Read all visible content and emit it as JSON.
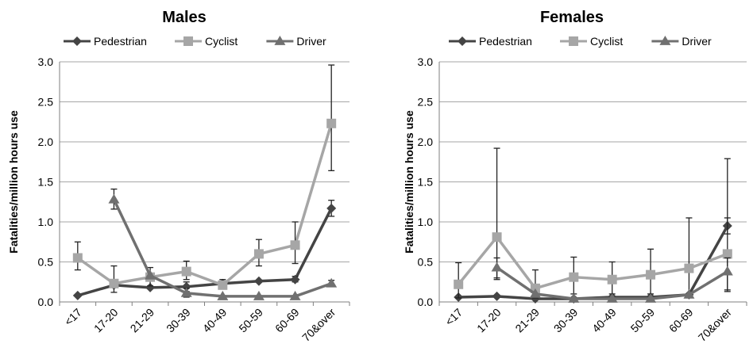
{
  "colors": {
    "Pedestrian": "#444444",
    "Cyclist": "#a6a6a6",
    "Driver": "#707070",
    "grid": "#a6a6a6",
    "axis": "#7f7f7f"
  },
  "markers": {
    "Pedestrian": "diamond",
    "Cyclist": "square",
    "Driver": "triangle"
  },
  "chart_data": [
    {
      "type": "line",
      "title": "Males",
      "ylabel": "Fatalities/million hours use",
      "xlabel": "",
      "categories": [
        "<17",
        "17-20",
        "21-29",
        "30-39",
        "40-49",
        "50-59",
        "60-69",
        "70&over"
      ],
      "ylim": [
        0,
        3.0
      ],
      "yticks": [
        "0.0",
        "0.5",
        "1.0",
        "1.5",
        "2.0",
        "2.5",
        "3.0"
      ],
      "grid": true,
      "legend": "top",
      "series": [
        {
          "name": "Pedestrian",
          "values": [
            0.08,
            0.21,
            0.18,
            0.19,
            0.23,
            0.26,
            0.28,
            1.17
          ],
          "err_low": [
            null,
            null,
            null,
            0.13,
            null,
            null,
            0.25,
            1.07
          ],
          "err_high": [
            null,
            null,
            null,
            0.25,
            null,
            null,
            0.32,
            1.27
          ]
        },
        {
          "name": "Cyclist",
          "values": [
            0.55,
            0.23,
            0.31,
            0.38,
            0.21,
            0.6,
            0.71,
            2.23
          ],
          "err_low": [
            0.4,
            0.12,
            0.2,
            0.28,
            0.17,
            0.45,
            0.48,
            1.64
          ],
          "err_high": [
            0.75,
            0.45,
            0.43,
            0.51,
            0.28,
            0.78,
            1.0,
            2.96
          ]
        },
        {
          "name": "Driver",
          "values": [
            null,
            1.28,
            0.33,
            0.11,
            0.07,
            0.07,
            0.07,
            0.23
          ],
          "err_low": [
            null,
            1.16,
            null,
            0.06,
            null,
            null,
            null,
            0.2
          ],
          "err_high": [
            null,
            1.41,
            null,
            0.17,
            null,
            null,
            null,
            0.27
          ]
        }
      ]
    },
    {
      "type": "line",
      "title": "Females",
      "ylabel": "Fatalities/million hours use",
      "xlabel": "",
      "categories": [
        "<17",
        "17-20",
        "21-29",
        "30-39",
        "40-49",
        "50-59",
        "60-69",
        "70&over"
      ],
      "ylim": [
        0,
        3.0
      ],
      "yticks": [
        "0.0",
        "0.5",
        "1.0",
        "1.5",
        "2.0",
        "2.5",
        "3.0"
      ],
      "grid": true,
      "legend": "top",
      "series": [
        {
          "name": "Pedestrian",
          "values": [
            0.06,
            0.07,
            0.04,
            0.04,
            0.06,
            0.06,
            0.09,
            0.95
          ],
          "err_low": [
            null,
            null,
            null,
            null,
            null,
            null,
            null,
            0.85
          ],
          "err_high": [
            null,
            null,
            null,
            null,
            null,
            null,
            null,
            1.05
          ]
        },
        {
          "name": "Cyclist",
          "values": [
            0.22,
            0.81,
            0.17,
            0.31,
            0.28,
            0.34,
            0.42,
            0.6
          ],
          "err_low": [
            0.05,
            0.28,
            0.05,
            0.1,
            0.1,
            0.1,
            0.1,
            0.15
          ],
          "err_high": [
            0.49,
            1.92,
            0.4,
            0.56,
            0.5,
            0.66,
            1.05,
            1.79
          ]
        },
        {
          "name": "Driver",
          "values": [
            null,
            0.43,
            0.1,
            0.04,
            0.04,
            0.04,
            0.09,
            0.38
          ],
          "err_low": [
            null,
            0.3,
            null,
            null,
            null,
            null,
            null,
            0.13
          ],
          "err_high": [
            null,
            0.55,
            null,
            null,
            null,
            null,
            null,
            0.55
          ]
        }
      ]
    }
  ]
}
